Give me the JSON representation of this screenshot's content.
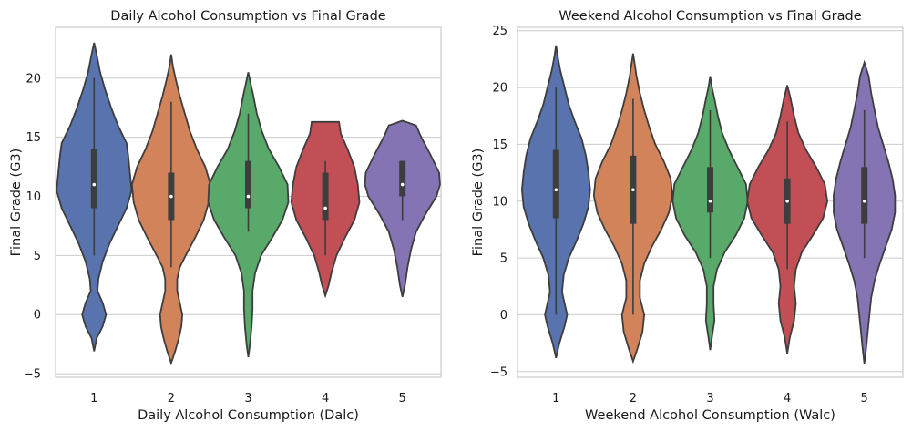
{
  "chart_data": [
    {
      "type": "violin",
      "title": "Daily Alcohol Consumption vs Final Grade",
      "xlabel": "Daily Alcohol Consumption (Dalc)",
      "ylabel": "Final Grade (G3)",
      "ylim": [
        -5.3,
        24.3
      ],
      "yticks": [
        -5,
        0,
        5,
        10,
        15,
        20
      ],
      "grid": true,
      "categories": [
        "1",
        "2",
        "3",
        "4",
        "5"
      ],
      "colors": [
        "#5873ad",
        "#d3835a",
        "#59a96a",
        "#c24f56",
        "#8474b3"
      ],
      "violins": [
        {
          "category": "1",
          "ymin": -3.1,
          "ymax": 23.0,
          "q1": 9,
          "median": 11,
          "q3": 14,
          "whisker_low": 5,
          "whisker_high": 20,
          "density": [
            [
              -3.1,
              0.0
            ],
            [
              -2.0,
              0.03
            ],
            [
              -1.0,
              0.1
            ],
            [
              0.0,
              0.14
            ],
            [
              1.0,
              0.1
            ],
            [
              2.0,
              0.04
            ],
            [
              3.0,
              0.05
            ],
            [
              4.5,
              0.1
            ],
            [
              6.0,
              0.18
            ],
            [
              7.5,
              0.28
            ],
            [
              9.0,
              0.38
            ],
            [
              10.5,
              0.44
            ],
            [
              12.0,
              0.42
            ],
            [
              13.5,
              0.4
            ],
            [
              14.5,
              0.38
            ],
            [
              16.0,
              0.28
            ],
            [
              17.5,
              0.2
            ],
            [
              19.0,
              0.13
            ],
            [
              20.5,
              0.07
            ],
            [
              22.0,
              0.03
            ],
            [
              23.0,
              0.0
            ]
          ]
        },
        {
          "category": "2",
          "ymin": -4.1,
          "ymax": 22.0,
          "q1": 8,
          "median": 10,
          "q3": 12,
          "whisker_low": 4,
          "whisker_high": 18,
          "density": [
            [
              -4.1,
              0.0
            ],
            [
              -3.0,
              0.05
            ],
            [
              -2.0,
              0.09
            ],
            [
              -1.0,
              0.12
            ],
            [
              0.0,
              0.13
            ],
            [
              1.0,
              0.1
            ],
            [
              2.0,
              0.07
            ],
            [
              3.0,
              0.07
            ],
            [
              4.0,
              0.1
            ],
            [
              5.0,
              0.17
            ],
            [
              6.5,
              0.28
            ],
            [
              8.0,
              0.38
            ],
            [
              9.5,
              0.44
            ],
            [
              11.0,
              0.46
            ],
            [
              12.5,
              0.4
            ],
            [
              14.0,
              0.3
            ],
            [
              15.5,
              0.22
            ],
            [
              17.0,
              0.16
            ],
            [
              18.5,
              0.1
            ],
            [
              20.0,
              0.05
            ],
            [
              21.0,
              0.02
            ],
            [
              22.0,
              0.0
            ]
          ]
        },
        {
          "category": "3",
          "ymin": -3.6,
          "ymax": 20.5,
          "q1": 9,
          "median": 10,
          "q3": 13,
          "whisker_low": 7,
          "whisker_high": 17,
          "density": [
            [
              -3.6,
              0.0
            ],
            [
              -2.5,
              0.02
            ],
            [
              -1.0,
              0.04
            ],
            [
              0.5,
              0.05
            ],
            [
              2.0,
              0.05
            ],
            [
              3.5,
              0.08
            ],
            [
              5.0,
              0.15
            ],
            [
              6.5,
              0.28
            ],
            [
              8.0,
              0.4
            ],
            [
              9.5,
              0.47
            ],
            [
              11.0,
              0.46
            ],
            [
              12.5,
              0.36
            ],
            [
              14.0,
              0.24
            ],
            [
              15.5,
              0.16
            ],
            [
              17.0,
              0.1
            ],
            [
              18.5,
              0.06
            ],
            [
              19.5,
              0.03
            ],
            [
              20.5,
              0.0
            ]
          ]
        },
        {
          "category": "4",
          "ymin": 1.6,
          "ymax": 16.3,
          "q1": 8,
          "median": 9,
          "q3": 12,
          "whisker_low": 5,
          "whisker_high": 13,
          "density": [
            [
              1.6,
              0.0
            ],
            [
              2.5,
              0.04
            ],
            [
              3.5,
              0.07
            ],
            [
              5.0,
              0.13
            ],
            [
              6.5,
              0.23
            ],
            [
              8.0,
              0.34
            ],
            [
              9.5,
              0.4
            ],
            [
              11.0,
              0.38
            ],
            [
              12.5,
              0.34
            ],
            [
              14.0,
              0.26
            ],
            [
              15.3,
              0.18
            ],
            [
              16.3,
              0.16
            ],
            [
              16.3,
              0.0
            ]
          ]
        },
        {
          "category": "5",
          "ymin": 1.5,
          "ymax": 16.4,
          "q1": 10,
          "median": 11,
          "q3": 13,
          "whisker_low": 8,
          "whisker_high": 13,
          "density": [
            [
              1.5,
              0.0
            ],
            [
              2.5,
              0.03
            ],
            [
              4.0,
              0.06
            ],
            [
              5.5,
              0.1
            ],
            [
              7.0,
              0.16
            ],
            [
              8.5,
              0.27
            ],
            [
              10.0,
              0.4
            ],
            [
              11.0,
              0.44
            ],
            [
              12.0,
              0.43
            ],
            [
              13.5,
              0.33
            ],
            [
              15.0,
              0.22
            ],
            [
              16.0,
              0.16
            ],
            [
              16.4,
              0.0
            ]
          ]
        }
      ]
    },
    {
      "type": "violin",
      "title": "Weekend Alcohol Consumption vs Final Grade",
      "xlabel": "Weekend Alcohol Consumption (Walc)",
      "ylabel": "Final Grade (G3)",
      "ylim": [
        -5.5,
        25.3
      ],
      "yticks": [
        -5,
        0,
        5,
        10,
        15,
        20,
        25
      ],
      "grid": true,
      "categories": [
        "1",
        "2",
        "3",
        "4",
        "5"
      ],
      "colors": [
        "#5873ad",
        "#d3835a",
        "#59a96a",
        "#c24f56",
        "#8474b3"
      ],
      "violins": [
        {
          "category": "1",
          "ymin": -3.8,
          "ymax": 23.7,
          "q1": 8.5,
          "median": 11,
          "q3": 14.5,
          "whisker_low": 0,
          "whisker_high": 20,
          "density": [
            [
              -3.8,
              0.0
            ],
            [
              -2.5,
              0.04
            ],
            [
              -1.0,
              0.1
            ],
            [
              0.0,
              0.13
            ],
            [
              1.0,
              0.1
            ],
            [
              2.0,
              0.07
            ],
            [
              3.5,
              0.09
            ],
            [
              5.0,
              0.15
            ],
            [
              6.5,
              0.24
            ],
            [
              8.0,
              0.32
            ],
            [
              9.5,
              0.38
            ],
            [
              11.0,
              0.4
            ],
            [
              12.5,
              0.38
            ],
            [
              14.0,
              0.35
            ],
            [
              15.5,
              0.3
            ],
            [
              17.0,
              0.22
            ],
            [
              18.5,
              0.15
            ],
            [
              20.0,
              0.1
            ],
            [
              21.5,
              0.05
            ],
            [
              22.7,
              0.02
            ],
            [
              23.7,
              0.0
            ]
          ]
        },
        {
          "category": "2",
          "ymin": -4.1,
          "ymax": 23.0,
          "q1": 8,
          "median": 11,
          "q3": 14,
          "whisker_low": 0,
          "whisker_high": 19,
          "density": [
            [
              -4.1,
              0.0
            ],
            [
              -3.0,
              0.05
            ],
            [
              -1.5,
              0.11
            ],
            [
              0.0,
              0.13
            ],
            [
              1.5,
              0.08
            ],
            [
              3.0,
              0.08
            ],
            [
              4.5,
              0.13
            ],
            [
              6.0,
              0.22
            ],
            [
              7.5,
              0.33
            ],
            [
              9.0,
              0.42
            ],
            [
              10.5,
              0.46
            ],
            [
              12.0,
              0.44
            ],
            [
              13.5,
              0.36
            ],
            [
              15.0,
              0.26
            ],
            [
              16.5,
              0.19
            ],
            [
              18.0,
              0.13
            ],
            [
              19.5,
              0.08
            ],
            [
              21.0,
              0.04
            ],
            [
              22.0,
              0.02
            ],
            [
              23.0,
              0.0
            ]
          ]
        },
        {
          "category": "3",
          "ymin": -3.1,
          "ymax": 21.0,
          "q1": 9,
          "median": 10,
          "q3": 13,
          "whisker_low": 5,
          "whisker_high": 18,
          "density": [
            [
              -3.1,
              0.0
            ],
            [
              -2.0,
              0.02
            ],
            [
              -0.5,
              0.05
            ],
            [
              1.0,
              0.04
            ],
            [
              2.5,
              0.04
            ],
            [
              4.0,
              0.08
            ],
            [
              5.5,
              0.17
            ],
            [
              7.0,
              0.3
            ],
            [
              8.5,
              0.4
            ],
            [
              10.0,
              0.44
            ],
            [
              11.5,
              0.42
            ],
            [
              13.0,
              0.32
            ],
            [
              14.5,
              0.22
            ],
            [
              16.0,
              0.14
            ],
            [
              17.5,
              0.09
            ],
            [
              19.0,
              0.05
            ],
            [
              20.0,
              0.02
            ],
            [
              21.0,
              0.0
            ]
          ]
        },
        {
          "category": "4",
          "ymin": -3.4,
          "ymax": 20.2,
          "q1": 8,
          "median": 10,
          "q3": 12,
          "whisker_low": 4,
          "whisker_high": 17,
          "density": [
            [
              -3.4,
              0.0
            ],
            [
              -2.0,
              0.03
            ],
            [
              -0.5,
              0.08
            ],
            [
              1.0,
              0.1
            ],
            [
              2.5,
              0.08
            ],
            [
              4.0,
              0.1
            ],
            [
              5.5,
              0.17
            ],
            [
              7.0,
              0.3
            ],
            [
              8.5,
              0.42
            ],
            [
              10.0,
              0.47
            ],
            [
              11.5,
              0.44
            ],
            [
              13.0,
              0.34
            ],
            [
              14.5,
              0.22
            ],
            [
              16.0,
              0.13
            ],
            [
              17.5,
              0.08
            ],
            [
              19.0,
              0.04
            ],
            [
              20.2,
              0.0
            ]
          ]
        },
        {
          "category": "5",
          "ymin": -4.3,
          "ymax": 22.2,
          "q1": 8,
          "median": 10,
          "q3": 13,
          "whisker_low": 5,
          "whisker_high": 18,
          "density": [
            [
              -4.3,
              0.0
            ],
            [
              -3.0,
              0.02
            ],
            [
              -1.5,
              0.04
            ],
            [
              0.0,
              0.06
            ],
            [
              1.5,
              0.08
            ],
            [
              3.0,
              0.12
            ],
            [
              4.5,
              0.18
            ],
            [
              6.0,
              0.25
            ],
            [
              7.5,
              0.32
            ],
            [
              9.0,
              0.36
            ],
            [
              10.5,
              0.36
            ],
            [
              12.0,
              0.33
            ],
            [
              13.5,
              0.28
            ],
            [
              15.0,
              0.22
            ],
            [
              16.5,
              0.16
            ],
            [
              18.0,
              0.12
            ],
            [
              19.5,
              0.08
            ],
            [
              21.0,
              0.05
            ],
            [
              22.2,
              0.0
            ]
          ]
        }
      ]
    }
  ]
}
